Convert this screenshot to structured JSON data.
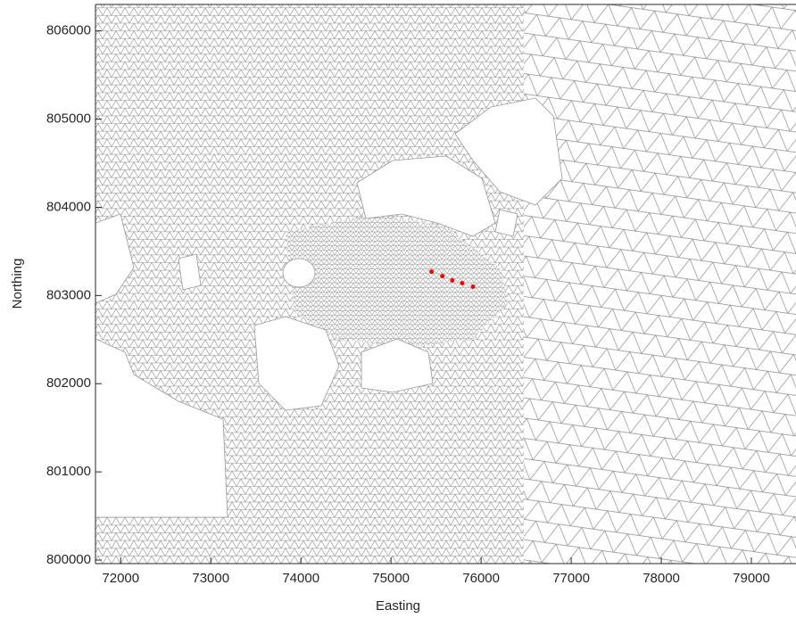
{
  "chart_data": {
    "type": "scatter",
    "x_label": "Easting",
    "y_label": "Northing",
    "series": [
      {
        "color": "#ff0000",
        "x": [
          75450,
          75570,
          75680,
          75790,
          75910
        ],
        "values": [
          803270,
          803220,
          803170,
          803140,
          803100
        ]
      }
    ],
    "xlim": [
      71720,
      79495
    ],
    "ylim": [
      799960,
      806300
    ],
    "xticks": [
      72000,
      73000,
      74000,
      75000,
      76000,
      77000,
      78000,
      79000
    ],
    "yticks": [
      800000,
      801000,
      802000,
      803000,
      804000,
      805000,
      806000
    ]
  }
}
